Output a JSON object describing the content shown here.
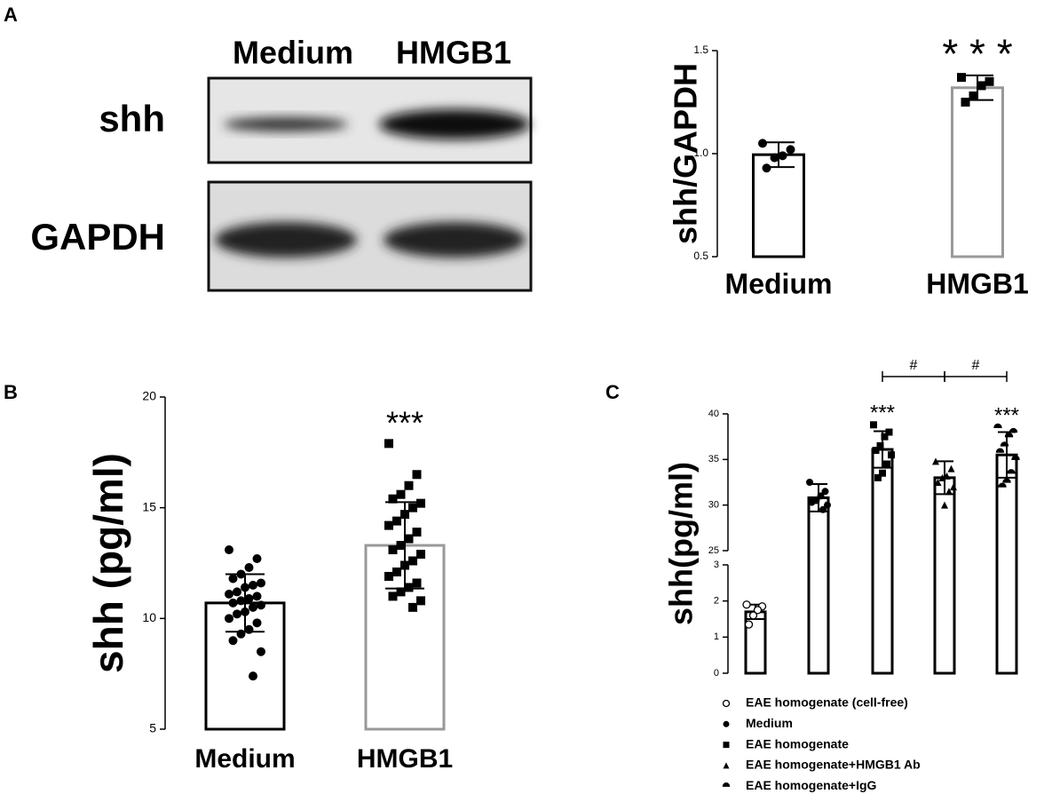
{
  "panel_labels": [
    "A",
    "B",
    "C"
  ],
  "blot": {
    "lanes": [
      "Medium",
      "HMGB1"
    ],
    "rows": [
      "shh",
      "GAPDH"
    ]
  },
  "chart_data": [
    {
      "type": "bar",
      "ylabel": "shh/GAPDH",
      "categories": [
        "Medium",
        "HMGB1"
      ],
      "values": [
        0.995,
        1.32
      ],
      "errors": [
        0.06,
        0.06
      ],
      "points": [
        [
          1.05,
          1.02,
          0.99,
          0.98,
          0.93
        ],
        [
          1.37,
          1.35,
          1.33,
          1.28,
          1.25
        ]
      ],
      "markers": [
        "circle",
        "square"
      ],
      "colors": [
        "#000000",
        "#999999"
      ],
      "significance": [
        null,
        "* * *"
      ],
      "ylim": [
        0.5,
        1.5
      ],
      "yticks": [
        0.5,
        {
          "value": 1,
          "label": "1.0"
        },
        1.5
      ]
    },
    {
      "type": "bar",
      "ylabel": "shh (pg/ml)",
      "categories": [
        "Medium",
        "HMGB1"
      ],
      "values": [
        10.7,
        13.3
      ],
      "errors": [
        1.3,
        1.95
      ],
      "points": [
        [
          13.1,
          12.7,
          12.3,
          12.0,
          11.8,
          11.6,
          11.5,
          11.4,
          11.2,
          11.1,
          11.0,
          10.9,
          10.8,
          10.7,
          10.6,
          10.5,
          10.3,
          10.2,
          10.0,
          9.8,
          9.5,
          9.3,
          9.0,
          8.5,
          7.4
        ],
        [
          17.9,
          16.5,
          16.0,
          15.6,
          15.4,
          15.2,
          15.0,
          14.7,
          14.4,
          14.2,
          13.9,
          13.6,
          13.3,
          13.1,
          12.9,
          12.6,
          12.4,
          12.1,
          11.9,
          11.6,
          11.4,
          11.2,
          11.0,
          10.8,
          10.5
        ]
      ],
      "markers": [
        "circle",
        "square"
      ],
      "colors": [
        "#000000",
        "#999999"
      ],
      "significance": [
        null,
        "***"
      ],
      "ylim": [
        5,
        20
      ],
      "yticks": [
        5,
        10,
        15,
        20
      ]
    },
    {
      "type": "bar",
      "ylabel": "shh(pg/ml)",
      "categories": [
        "EAE homogenate (cell-free)",
        "Medium",
        "EAE homogenate",
        "EAE homogenate+HMGB1 Ab",
        "EAE homogenate+IgG"
      ],
      "values": [
        1.7,
        30.8,
        36.1,
        33.0,
        35.5
      ],
      "errors": [
        0.2,
        1.5,
        2.0,
        1.8,
        2.5
      ],
      "points": [
        [
          1.9,
          1.85,
          1.75,
          1.6,
          1.35
        ],
        [
          32.5,
          31.5,
          31,
          30.5,
          30.3,
          30,
          29.5
        ],
        [
          38.8,
          38,
          37.5,
          36.5,
          36,
          35.5,
          34.5,
          33.5,
          33
        ],
        [
          34.8,
          34,
          33.2,
          33,
          32.5,
          32,
          31.5,
          30
        ],
        [
          38.5,
          38,
          37.5,
          36.5,
          35.8,
          35,
          33.5,
          32.5,
          32
        ]
      ],
      "markers": [
        "open-circle",
        "circle",
        "square",
        "triangle",
        "half-circle"
      ],
      "colors": [
        "#000000",
        "#000000",
        "#000000",
        "#000000",
        "#000000"
      ],
      "significance": [
        null,
        null,
        "***",
        null,
        "***"
      ],
      "comparisons": [
        {
          "pair": [
            2,
            3
          ],
          "label": "#"
        },
        {
          "pair": [
            3,
            4
          ],
          "label": "#"
        }
      ],
      "legend": true,
      "ylim": [
        0,
        40
      ],
      "ybreak": [
        3,
        25
      ],
      "yticks": [
        0,
        1,
        2,
        3,
        25,
        30,
        35,
        40
      ]
    }
  ]
}
